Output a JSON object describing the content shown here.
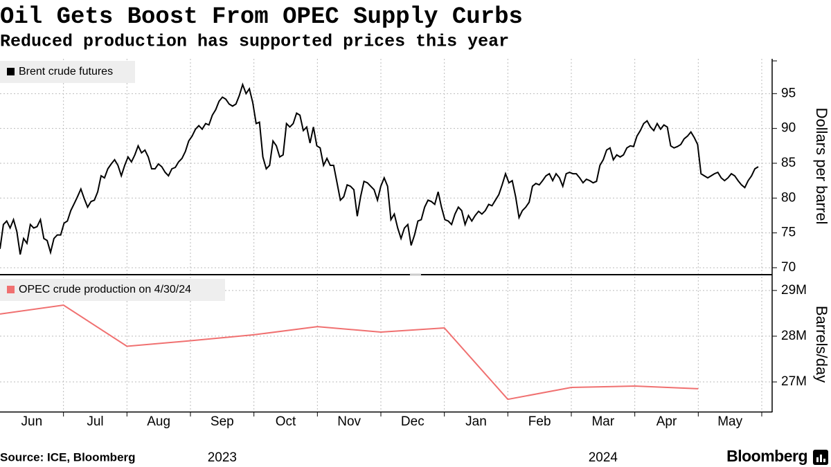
{
  "chart_data": [
    {
      "type": "line",
      "title": "Oil Gets Boost From OPEC Supply Curbs",
      "subtitle": "Reduced production has supported prices this year",
      "ylabel": "Dollars per barrel",
      "series": [
        {
          "name": "Brent crude futures",
          "color": "#000000",
          "values": [
            72.7,
            76.2,
            76.7,
            75.7,
            76.9,
            75.2,
            71.9,
            74.2,
            73.5,
            76.2,
            75.7,
            75.9,
            76.9,
            74.2,
            73.9,
            72.2,
            74.2,
            74.7,
            74.7,
            76.4,
            76.7,
            78.2,
            79.2,
            80.2,
            81.3,
            79.9,
            78.7,
            79.5,
            79.7,
            80.9,
            83.2,
            82.9,
            84.2,
            84.9,
            85.5,
            84.7,
            83.2,
            84.7,
            85.9,
            85.2,
            86.2,
            87.5,
            86.5,
            86.9,
            85.9,
            84.2,
            84.2,
            84.9,
            84.5,
            83.7,
            83.2,
            84.2,
            84.4,
            85.2,
            85.7,
            86.7,
            88.2,
            88.9,
            89.9,
            90.4,
            89.9,
            90.7,
            90.5,
            91.9,
            92.7,
            93.9,
            94.5,
            94.2,
            93.5,
            93.2,
            93.5,
            94.7,
            96.3,
            95.0,
            95.7,
            93.7,
            90.7,
            90.9,
            85.9,
            84.2,
            84.7,
            88.2,
            87.5,
            85.9,
            86.2,
            90.7,
            90.2,
            90.7,
            92.2,
            91.9,
            89.7,
            90.2,
            87.9,
            90.2,
            87.5,
            87.2,
            84.7,
            85.7,
            84.7,
            84.7,
            82.2,
            79.7,
            80.2,
            81.9,
            81.7,
            81.2,
            77.4,
            80.2,
            82.4,
            82.2,
            81.7,
            81.2,
            79.7,
            81.7,
            82.9,
            81.7,
            76.9,
            77.7,
            75.7,
            74.2,
            75.7,
            76.2,
            73.2,
            74.7,
            76.7,
            76.9,
            78.7,
            79.7,
            79.5,
            79.1,
            80.9,
            78.7,
            76.9,
            76.7,
            76.2,
            77.7,
            78.7,
            78.2,
            76.2,
            77.5,
            76.7,
            77.5,
            78.1,
            77.7,
            78.2,
            79.1,
            78.9,
            79.7,
            80.5,
            81.9,
            83.5,
            82.2,
            82.5,
            80.2,
            77.2,
            78.2,
            78.7,
            79.4,
            81.7,
            82.1,
            81.9,
            82.5,
            83.2,
            83.5,
            82.5,
            83.5,
            82.9,
            81.7,
            83.5,
            83.7,
            83.5,
            83.5,
            82.9,
            82.2,
            82.7,
            82.5,
            82.2,
            82.4,
            84.7,
            85.5,
            86.9,
            87.2,
            85.5,
            86.2,
            85.9,
            86.2,
            87.2,
            87.5,
            87.4,
            88.9,
            89.7,
            90.7,
            91.1,
            90.2,
            89.7,
            90.7,
            89.9,
            90.5,
            90.2,
            87.5,
            87.2,
            87.4,
            87.7,
            88.5,
            88.9,
            89.5,
            88.7,
            87.7,
            83.5,
            83.2,
            82.9,
            83.2,
            83.5,
            83.7,
            82.9,
            82.5,
            82.9,
            83.5,
            83.2,
            82.5,
            81.9,
            81.5,
            82.5,
            83.2,
            84.2,
            84.5
          ]
        }
      ],
      "ylim": [
        69.2,
        100
      ],
      "yticks": [
        70,
        75,
        80,
        85,
        90,
        95
      ],
      "grid": true
    },
    {
      "type": "line",
      "ylabel": "Barrels/day",
      "series": [
        {
          "name": "OPEC crude production on 4/30/24",
          "color": "#f07070",
          "values": [
            28485000,
            28680000,
            27780000,
            27900000,
            28030000,
            28210000,
            28090000,
            28180000,
            26620000,
            26880000,
            26910000,
            26850000
          ]
        }
      ],
      "ylim": [
        26350000,
        29300000
      ],
      "yticks": [
        {
          "value": 27000000,
          "label": "27M"
        },
        {
          "value": 28000000,
          "label": "28M"
        },
        {
          "value": 29000000,
          "label": "29M"
        }
      ],
      "grid": true
    }
  ],
  "x_axis": {
    "categories": [
      "Jun",
      "Jul",
      "Aug",
      "Sep",
      "Oct",
      "Nov",
      "Dec",
      "Jan",
      "Feb",
      "Mar",
      "Apr",
      "May"
    ],
    "years": [
      null,
      null,
      null,
      "2023",
      null,
      null,
      null,
      null,
      null,
      "2024",
      null,
      null
    ]
  },
  "source": "Source: ICE, Bloomberg",
  "brand": "Bloomberg"
}
